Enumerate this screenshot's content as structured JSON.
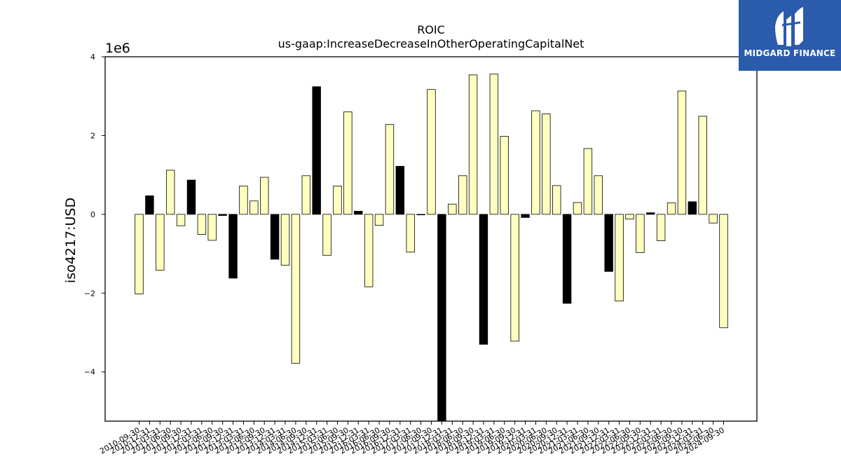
{
  "chart_data": {
    "type": "bar",
    "title": "ROIC",
    "subtitle": "us-gaap:IncreaseDecreaseInOtherOperatingCapitalNet",
    "ylabel": "iso4217:USD",
    "xlabel": "",
    "y_offset_label": "1e6",
    "ylim": [
      -5.25,
      4.0
    ],
    "yticks": [
      -4,
      -2,
      0,
      2,
      4
    ],
    "ytick_labels": [
      "−4",
      "−2",
      "0",
      "2",
      "4"
    ],
    "grid": false,
    "colors": {
      "positive_quarter": "#ffffbf",
      "highlight": "#000000",
      "edge": "#000000"
    },
    "tick_labels": [
      "2010-09-30",
      "2010-12-31",
      "2011-03-31",
      "2011-06-30",
      "2011-09-30",
      "2011-12-31",
      "2012-03-31",
      "2012-06-30",
      "2012-09-30",
      "2012-12-31",
      "2013-03-31",
      "2013-06-30",
      "2013-09-30",
      "2013-12-31",
      "2014-03-31",
      "2014-06-30",
      "2014-09-30",
      "2014-12-31",
      "2015-03-31",
      "2015-06-30",
      "2015-09-30",
      "2015-12-31",
      "2016-03-31",
      "2016-06-30",
      "2016-09-30",
      "2016-12-31",
      "2017-03-31",
      "2017-06-30",
      "2017-09-30",
      "2017-12-31",
      "2018-03-31",
      "2018-06-30",
      "2018-09-30",
      "2018-12-31",
      "2019-03-31",
      "2019-06-30",
      "2019-09-30",
      "2019-12-31",
      "2020-03-31",
      "2020-06-30",
      "2020-09-30",
      "2020-12-31",
      "2021-03-31",
      "2021-06-30",
      "2021-09-30",
      "2021-12-31",
      "2022-03-31",
      "2022-06-30",
      "2022-09-30",
      "2022-12-31",
      "2023-03-31",
      "2023-06-30",
      "2023-09-30",
      "2023-12-31",
      "2024-03-31",
      "2024-06-30",
      "2024-09-30"
    ],
    "series": [
      {
        "values": [
          -2.02,
          0.47,
          -1.42,
          1.12,
          -0.29,
          0.87,
          -0.51,
          -0.66,
          -0.03,
          -1.62,
          0.72,
          0.34,
          0.94,
          -1.14,
          -1.29,
          -3.78,
          0.98,
          3.24,
          -1.04,
          0.72,
          2.6,
          0.08,
          -1.84,
          -0.28,
          2.28,
          1.22,
          -0.96,
          0.0,
          3.17,
          -5.3,
          0.26,
          0.98,
          3.54,
          -3.3,
          3.56,
          1.98,
          -3.22,
          -0.08,
          2.63,
          2.55,
          0.73,
          -2.26,
          0.3,
          1.67,
          0.98,
          -1.45,
          -2.2,
          -0.12,
          -0.97,
          0.04,
          -0.67,
          0.29,
          3.13,
          0.32,
          2.49,
          -0.22,
          -2.88
        ],
        "highlight": [
          false,
          true,
          false,
          false,
          false,
          true,
          false,
          false,
          true,
          true,
          false,
          false,
          false,
          true,
          false,
          false,
          false,
          true,
          false,
          false,
          false,
          true,
          false,
          false,
          false,
          true,
          false,
          false,
          false,
          true,
          false,
          false,
          false,
          true,
          false,
          false,
          false,
          true,
          false,
          false,
          false,
          true,
          false,
          false,
          false,
          true,
          false,
          false,
          false,
          true,
          false,
          false,
          false,
          true,
          false,
          false,
          false
        ]
      }
    ]
  },
  "logo": {
    "text": "MIDGARD FINANCE",
    "icon": "midgard-logo-icon"
  }
}
